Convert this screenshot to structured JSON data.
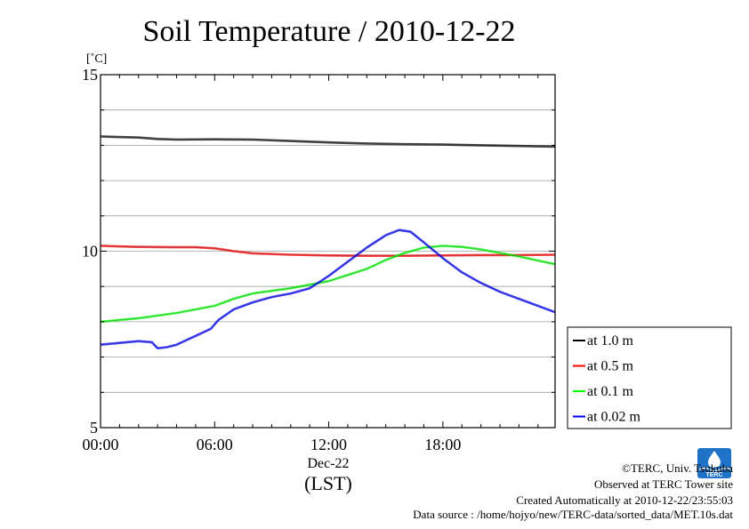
{
  "chart_data": {
    "type": "line",
    "title": "Soil Temperature / 2010-12-22",
    "yunit": "[˚C]",
    "ylim": [
      5,
      15
    ],
    "yticks": [
      "5",
      "10",
      "15"
    ],
    "xlim": [
      0,
      23.9
    ],
    "xticks": [
      {
        "x": 0,
        "label": "00:00"
      },
      {
        "x": 6,
        "label": "06:00"
      },
      {
        "x": 12,
        "label": "12:00"
      },
      {
        "x": 18,
        "label": "18:00"
      }
    ],
    "xsublabel": "Dec-22",
    "xlabel": "(LST)",
    "grid": true,
    "legend_position": "right-bottom-outside",
    "series": [
      {
        "name": "at 1.0 m",
        "color": "#000000",
        "x": [
          0,
          2,
          3,
          4,
          6,
          8,
          10,
          12,
          14,
          16,
          18,
          20,
          22,
          23.9
        ],
        "values": [
          13.25,
          13.22,
          13.18,
          13.16,
          13.17,
          13.16,
          13.12,
          13.08,
          13.05,
          13.03,
          13.02,
          13.0,
          12.98,
          12.96
        ]
      },
      {
        "name": "at 0.5 m",
        "color": "#ff0000",
        "x": [
          0,
          2,
          4,
          5,
          6,
          7,
          8,
          10,
          12,
          14,
          16,
          18,
          20,
          22,
          23.9
        ],
        "values": [
          10.15,
          10.12,
          10.11,
          10.11,
          10.08,
          10.0,
          9.94,
          9.9,
          9.88,
          9.87,
          9.87,
          9.88,
          9.89,
          9.89,
          9.9
        ]
      },
      {
        "name": "at 0.1 m",
        "color": "#00ff00",
        "x": [
          0,
          2,
          4,
          6,
          7,
          8,
          10,
          12,
          14,
          15,
          16,
          17,
          18,
          19,
          20,
          22,
          23.9
        ],
        "values": [
          8.0,
          8.1,
          8.25,
          8.45,
          8.65,
          8.8,
          8.95,
          9.15,
          9.5,
          9.75,
          9.95,
          10.1,
          10.15,
          10.12,
          10.05,
          9.85,
          9.63
        ]
      },
      {
        "name": "at 0.02 m",
        "color": "#0000ff",
        "x": [
          0,
          1,
          2,
          2.7,
          3,
          3.5,
          4,
          5,
          5.8,
          6.2,
          7,
          8,
          9,
          10,
          11,
          12,
          13,
          14,
          15,
          15.7,
          16.3,
          17,
          18,
          19,
          20,
          21,
          22,
          23,
          23.9
        ],
        "values": [
          7.35,
          7.4,
          7.45,
          7.42,
          7.25,
          7.28,
          7.35,
          7.6,
          7.8,
          8.05,
          8.35,
          8.55,
          8.7,
          8.8,
          8.95,
          9.3,
          9.7,
          10.1,
          10.45,
          10.6,
          10.55,
          10.25,
          9.8,
          9.4,
          9.1,
          8.85,
          8.65,
          8.45,
          8.27
        ]
      }
    ]
  },
  "footer": {
    "copyright": "©TERC, Univ. Tsukuba",
    "observed": "Observed at TERC Tower site",
    "created": "Created Automatically at 2010-12-22/23:55:03",
    "source": "Data source : /home/hojyo/new/TERC-data/sorted_data/MET.10s.dat"
  },
  "logo": {
    "name": "terc-logo",
    "text": "TERC",
    "color": "#1e73c8"
  }
}
